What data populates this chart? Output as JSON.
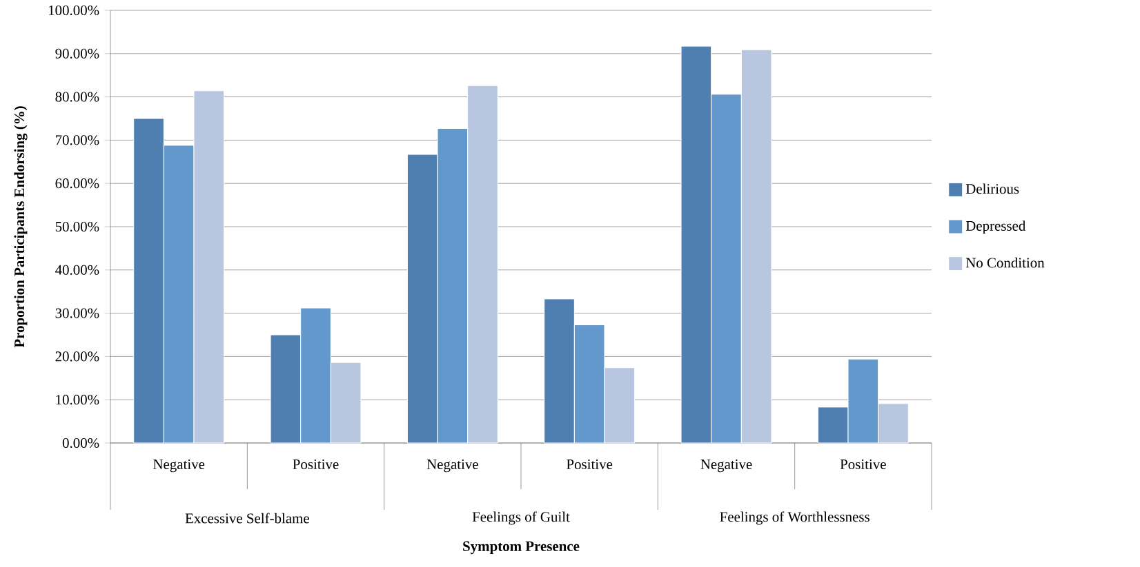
{
  "chart_data": {
    "type": "bar",
    "categories": [
      "Negative",
      "Positive",
      "Negative",
      "Positive",
      "Negative",
      "Positive"
    ],
    "annotations": [
      "Excessive Self-blame",
      "Feelings of Guilt",
      "Feelings of Worthlessness"
    ],
    "series": [
      {
        "name": "Delirious",
        "color": "#4f7fb0",
        "values": [
          75.0,
          25.0,
          66.7,
          33.3,
          91.7,
          8.3
        ]
      },
      {
        "name": "Depressed",
        "color": "#6298cb",
        "values": [
          68.8,
          31.2,
          72.7,
          27.3,
          80.6,
          19.4
        ]
      },
      {
        "name": "No Condition",
        "color": "#b8c6e0",
        "values": [
          81.4,
          18.6,
          82.6,
          17.4,
          90.9,
          9.1
        ]
      }
    ],
    "xlabel": "Symptom Presence",
    "ylabel": "Proportion Participants Endorsing (%)",
    "ylim": [
      0,
      100
    ],
    "yticks": [
      {
        "value": 0,
        "label": "0.00%"
      },
      {
        "value": 10,
        "label": "10.00%"
      },
      {
        "value": 20,
        "label": "20.00%"
      },
      {
        "value": 30,
        "label": "30.00%"
      },
      {
        "value": 40,
        "label": "40.00%"
      },
      {
        "value": 50,
        "label": "50.00%"
      },
      {
        "value": 60,
        "label": "60.00%"
      },
      {
        "value": 70,
        "label": "70.00%"
      },
      {
        "value": 80,
        "label": "80.00%"
      },
      {
        "value": 90,
        "label": "90.00%"
      },
      {
        "value": 100,
        "label": "100.00%"
      }
    ],
    "grid": "y",
    "legend": "right"
  }
}
